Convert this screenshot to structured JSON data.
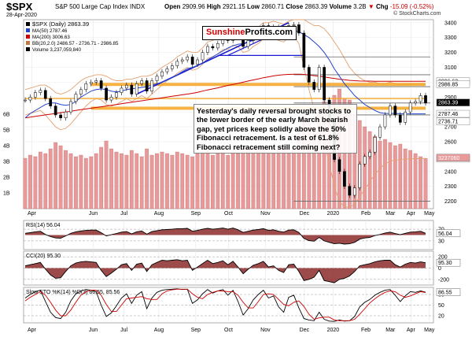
{
  "header": {
    "symbol": "$SPX",
    "name": "S&P 500 Large Cap Index",
    "exchange": "INDX",
    "date": "28-Apr-2020",
    "open_label": "Open",
    "open": "2909.96",
    "high_label": "High",
    "high": "2921.15",
    "low_label": "Low",
    "low": "2860.71",
    "close_label": "Close",
    "close": "2863.39",
    "volume_label": "Volume",
    "volume": "3.2B",
    "chg_label": "Chg",
    "chg": "-15.09 (-0.52%)",
    "chg_arrow": "▼",
    "brand": "© StockCharts.com"
  },
  "logo": {
    "part1": "Sunshine",
    "part2": "Profits.com"
  },
  "annotation": "Yesterday's daily reversal brought stocks to the lower border of the early March bearish gap, yet prices keep solidly above the 50% Fibonacci retracement. Is a test of 61.8% Fibonacci retracement still coming next?",
  "legend": {
    "main": "$SPX (Daily) 2863.39",
    "ma50": "MA(50) 2787.46",
    "ma200": "MA(200) 3006.63",
    "bb": "BB(20,2.0) 2486.57 - 2736.71 - 2986.85",
    "volume": "Volume 3,237,059,840",
    "rsi": "RSI(14) 56.04",
    "cci": "CCI(20) 95.30",
    "sto": "Slow STO %K(14) %D(3) 86.55, 85.56"
  },
  "colors": {
    "price": "#000000",
    "ma50": "#2244cc",
    "ma200": "#cc0000",
    "bb": "#e3a070",
    "trend_blue": "#1a1ad0",
    "fib_orange": "#f5a623",
    "volume": "#e89a9a",
    "volume_edge": "#c05a5a",
    "osc_fill": "#8b2a2a",
    "sto_d": "#cc0000",
    "panel_border": "#999999"
  },
  "chart_data": {
    "type": "line",
    "title": "$SPX (Daily) 2863.39",
    "x_ticks": [
      "Apr",
      "Jun",
      "Jul",
      "Aug",
      "Sep",
      "Oct",
      "Nov",
      "Dec",
      "2020",
      "Feb",
      "Mar",
      "Apr",
      "May"
    ],
    "price": {
      "ylim": [
        2150,
        3420
      ],
      "y_ticks": [
        "3400",
        "3300",
        "3200",
        "3100",
        "3000",
        "2900",
        "2800",
        "2700",
        "2600",
        "2500",
        "2400",
        "2300",
        "2200"
      ],
      "series": [
        {
          "name": "$SPX",
          "values": [
            2880,
            2900,
            2930,
            2945,
            2890,
            2840,
            2780,
            2760,
            2800,
            2870,
            2920,
            2950,
            2990,
            3000,
            3010,
            2960,
            2880,
            2900,
            2930,
            2960,
            2980,
            2920,
            2990,
            3010,
            2940,
            3010,
            3040,
            3070,
            3090,
            3110,
            3140,
            3150,
            3170,
            3120,
            3150,
            3200,
            3240,
            3230,
            3260,
            3290,
            3280,
            3330,
            3300,
            3240,
            3280,
            3320,
            3340,
            3380,
            3350,
            3370,
            3340,
            3320,
            3380,
            3386,
            3330,
            3100,
            3000,
            2950,
            3100,
            2880,
            2740,
            2480,
            2400,
            2300,
            2240,
            2290,
            2450,
            2500,
            2530,
            2630,
            2700,
            2780,
            2840,
            2780,
            2730,
            2800,
            2860,
            2870,
            2910,
            2860
          ]
        },
        {
          "name": "MA(50)",
          "values": [
            2760,
            2790,
            2810,
            2830,
            2850,
            2860,
            2860,
            2850,
            2845,
            2850,
            2870,
            2900,
            2920,
            2940,
            2950,
            2955,
            2950,
            2940,
            2935,
            2940,
            2950,
            2955,
            2960,
            2965,
            2970,
            2980,
            2990,
            3000,
            3015,
            3030,
            3050,
            3070,
            3090,
            3100,
            3110,
            3130,
            3150,
            3170,
            3190,
            3210,
            3230,
            3245,
            3255,
            3260,
            3270,
            3280,
            3295,
            3310,
            3320,
            3330,
            3335,
            3335,
            3340,
            3345,
            3340,
            3320,
            3300,
            3270,
            3240,
            3200,
            3150,
            3090,
            3040,
            2990,
            2950,
            2910,
            2880,
            2850,
            2830,
            2810,
            2795,
            2790,
            2790,
            2790,
            2788,
            2787,
            2787,
            2787,
            2787,
            2787
          ]
        },
        {
          "name": "MA(200)",
          "values": [
            2760,
            2765,
            2770,
            2775,
            2780,
            2785,
            2790,
            2795,
            2800,
            2805,
            2810,
            2815,
            2820,
            2825,
            2830,
            2835,
            2840,
            2845,
            2850,
            2855,
            2860,
            2865,
            2870,
            2875,
            2880,
            2885,
            2890,
            2895,
            2900,
            2905,
            2910,
            2915,
            2920,
            2925,
            2932,
            2940,
            2948,
            2955,
            2962,
            2970,
            2978,
            2985,
            2992,
            3000,
            3008,
            3015,
            3022,
            3030,
            3036,
            3042,
            3047,
            3050,
            3052,
            3054,
            3054,
            3052,
            3048,
            3044,
            3040,
            3035,
            3030,
            3025,
            3020,
            3016,
            3012,
            3010,
            3008,
            3007,
            3007,
            3006,
            3006,
            3006,
            3006,
            3006,
            3006,
            3006,
            3006,
            3006,
            3006,
            3006
          ]
        }
      ],
      "bb_upper": [
        2950,
        2960,
        2970,
        2980,
        2980,
        2960,
        2930,
        2920,
        2930,
        2950,
        2980,
        3010,
        3030,
        3040,
        3050,
        3050,
        3040,
        3020,
        3010,
        3010,
        3020,
        3020,
        3030,
        3040,
        3040,
        3050,
        3070,
        3100,
        3120,
        3140,
        3170,
        3190,
        3210,
        3200,
        3200,
        3230,
        3270,
        3280,
        3300,
        3320,
        3330,
        3360,
        3360,
        3340,
        3330,
        3350,
        3370,
        3400,
        3400,
        3410,
        3400,
        3390,
        3410,
        3420,
        3420,
        3420,
        3400,
        3380,
        3380,
        3360,
        3320,
        3270,
        3220,
        3160,
        3100,
        3060,
        3030,
        3010,
        3000,
        3000,
        2990,
        2990,
        3000,
        2990,
        2980,
        2985,
        2986,
        2986,
        2987,
        2987
      ],
      "bb_lower": [
        2780,
        2790,
        2800,
        2810,
        2780,
        2740,
        2700,
        2680,
        2690,
        2720,
        2760,
        2800,
        2840,
        2870,
        2890,
        2880,
        2850,
        2840,
        2850,
        2870,
        2890,
        2870,
        2890,
        2910,
        2890,
        2920,
        2950,
        2980,
        3010,
        3030,
        3060,
        3080,
        3100,
        3080,
        3090,
        3120,
        3160,
        3170,
        3190,
        3220,
        3220,
        3250,
        3240,
        3200,
        3210,
        3240,
        3260,
        3290,
        3290,
        3300,
        3280,
        3270,
        3300,
        3310,
        3260,
        3100,
        2950,
        2820,
        2700,
        2600,
        2450,
        2300,
        2200,
        2160,
        2160,
        2180,
        2230,
        2280,
        2330,
        2380,
        2420,
        2450,
        2470,
        2475,
        2480,
        2483,
        2485,
        2486,
        2486,
        2487
      ],
      "horizontal_levels": [
        3170,
        3050,
        2970,
        2860,
        2780,
        2200
      ]
    },
    "volume": {
      "y_ticks": [
        "6B",
        "5B",
        "4B",
        "3B",
        "2B",
        "1B"
      ],
      "values": [
        3.2,
        3.4,
        3.3,
        3.6,
        3.5,
        3.8,
        4.2,
        4.0,
        3.7,
        3.5,
        3.3,
        3.4,
        3.2,
        3.3,
        3.5,
        3.9,
        4.3,
        3.8,
        3.6,
        3.5,
        3.4,
        3.7,
        3.5,
        3.3,
        3.8,
        3.4,
        3.5,
        3.6,
        3.5,
        3.4,
        3.6,
        3.5,
        3.4,
        3.3,
        3.5,
        3.6,
        3.7,
        3.4,
        3.5,
        3.6,
        3.4,
        3.6,
        3.5,
        3.7,
        3.8,
        3.6,
        3.7,
        3.8,
        3.6,
        3.5,
        3.7,
        3.9,
        3.6,
        3.8,
        4.8,
        6.0,
        5.4,
        5.2,
        6.2,
        6.8,
        6.4,
        7.2,
        7.6,
        7.0,
        6.9,
        6.0,
        5.6,
        5.2,
        4.9,
        4.6,
        4.3,
        4.4,
        4.2,
        4.0,
        4.1,
        3.8,
        3.7,
        3.5,
        3.3,
        3.2
      ],
      "value_label": "3,237,059,840"
    },
    "rsi": {
      "ylim": [
        0,
        100
      ],
      "y_ticks": [
        "70",
        "30"
      ],
      "values": [
        56,
        58,
        61,
        63,
        52,
        45,
        40,
        39,
        47,
        56,
        61,
        64,
        66,
        67,
        67,
        58,
        47,
        51,
        55,
        60,
        62,
        54,
        61,
        64,
        53,
        62,
        65,
        68,
        69,
        70,
        72,
        72,
        73,
        63,
        66,
        70,
        73,
        70,
        72,
        74,
        70,
        74,
        68,
        59,
        63,
        67,
        69,
        72,
        66,
        68,
        63,
        60,
        67,
        68,
        59,
        38,
        31,
        29,
        42,
        30,
        25,
        20,
        22,
        19,
        20,
        25,
        36,
        40,
        42,
        48,
        52,
        57,
        60,
        55,
        51,
        56,
        60,
        61,
        63,
        56
      ],
      "value_label": "56.04"
    },
    "cci": {
      "ylim": [
        -300,
        300
      ],
      "y_ticks": [
        "200",
        "0",
        "-200"
      ],
      "values": [
        40,
        60,
        80,
        100,
        -20,
        -120,
        -180,
        -170,
        -60,
        40,
        90,
        110,
        120,
        110,
        100,
        -40,
        -150,
        -90,
        -20,
        60,
        80,
        -40,
        70,
        90,
        -60,
        60,
        100,
        140,
        130,
        140,
        150,
        130,
        140,
        -40,
        20,
        80,
        140,
        80,
        100,
        130,
        60,
        120,
        20,
        -100,
        -20,
        50,
        80,
        120,
        20,
        40,
        -40,
        -80,
        60,
        70,
        -60,
        -220,
        -200,
        -160,
        -40,
        -220,
        -240,
        -260,
        -200,
        -180,
        -140,
        -60,
        40,
        60,
        80,
        110,
        130,
        140,
        140,
        60,
        20,
        70,
        100,
        90,
        110,
        95
      ],
      "value_label": "95.30"
    },
    "sto": {
      "ylim": [
        0,
        100
      ],
      "y_ticks": [
        "80",
        "50",
        "20"
      ],
      "k": [
        70,
        80,
        88,
        92,
        60,
        30,
        15,
        12,
        30,
        62,
        82,
        90,
        94,
        92,
        88,
        50,
        18,
        28,
        48,
        70,
        82,
        55,
        78,
        88,
        40,
        70,
        86,
        92,
        94,
        95,
        96,
        94,
        95,
        55,
        65,
        82,
        94,
        84,
        90,
        94,
        78,
        92,
        60,
        22,
        40,
        65,
        80,
        92,
        70,
        76,
        45,
        30,
        72,
        78,
        42,
        12,
        8,
        6,
        30,
        10,
        5,
        4,
        8,
        5,
        6,
        18,
        45,
        58,
        66,
        78,
        86,
        92,
        94,
        78,
        60,
        76,
        88,
        86,
        90,
        86.55
      ],
      "d": [
        62,
        72,
        80,
        88,
        78,
        58,
        36,
        20,
        20,
        36,
        58,
        78,
        88,
        92,
        92,
        78,
        52,
        32,
        32,
        50,
        68,
        70,
        72,
        74,
        68,
        66,
        66,
        82,
        90,
        93,
        95,
        95,
        95,
        82,
        72,
        68,
        80,
        86,
        90,
        90,
        88,
        88,
        78,
        58,
        42,
        42,
        60,
        80,
        82,
        80,
        66,
        52,
        48,
        58,
        62,
        46,
        24,
        10,
        14,
        16,
        16,
        8,
        6,
        6,
        6,
        10,
        24,
        40,
        56,
        68,
        78,
        86,
        90,
        88,
        78,
        72,
        76,
        82,
        88,
        85.56
      ],
      "value_label_k": "86.55",
      "value_label_d": "85.56"
    }
  }
}
